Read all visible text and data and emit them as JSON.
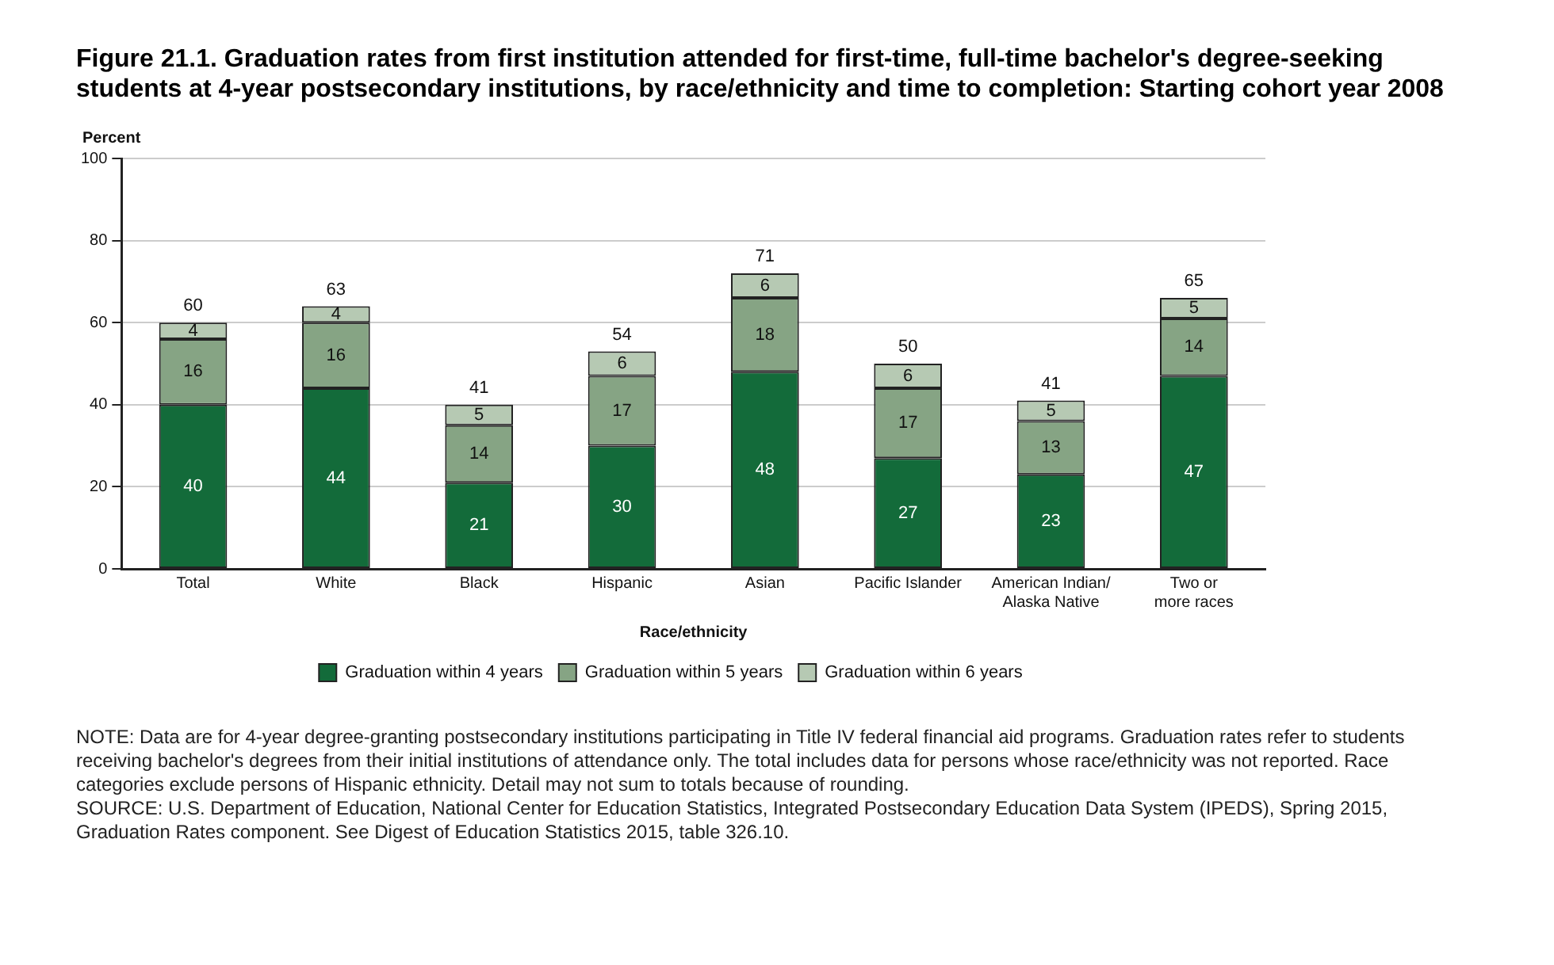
{
  "chart_data": {
    "type": "bar",
    "title": "Figure 21.1. Graduation rates from first institution attended for first-time, full-time bachelor's degree-seeking students at 4-year postsecondary institutions, by race/ethnicity and time to completion: Starting cohort year 2008",
    "ylabel": "Percent",
    "xlabel": "Race/ethnicity",
    "categories": [
      "Total",
      "White",
      "Black",
      "Hispanic",
      "Asian",
      "Pacific Islander",
      "American Indian/ Alaska Native",
      "Two or more races"
    ],
    "series": [
      {
        "name": "Graduation within 4 years",
        "color": "#136b3a",
        "values": [
          40,
          44,
          21,
          30,
          48,
          27,
          23,
          47
        ]
      },
      {
        "name": "Graduation within 5 years",
        "color": "#86a484",
        "values": [
          16,
          16,
          14,
          17,
          18,
          17,
          13,
          14
        ]
      },
      {
        "name": "Graduation within 6 years",
        "color": "#b6c9b3",
        "values": [
          4,
          4,
          5,
          6,
          6,
          6,
          5,
          5
        ]
      }
    ],
    "stacked": true,
    "data_labels": true,
    "totals": [
      "60",
      "63",
      "41",
      "54",
      "71",
      "50",
      "41",
      "65"
    ],
    "ylim": [
      0,
      100
    ],
    "yticks": [
      0,
      20,
      40,
      60,
      80,
      100
    ],
    "grid": "y",
    "legend": "bottom",
    "annotations": [
      "NOTE: Data are for 4-year degree-granting postsecondary institutions participating in Title IV federal financial aid programs. Graduation rates refer to students receiving bachelor's degrees from their initial institutions of attendance only. The total includes data for persons whose race/ethnicity was not reported. Race categories exclude persons of Hispanic ethnicity. Detail may not sum to totals because of rounding.",
      "SOURCE: U.S. Department of Education, National Center for Education Statistics, Integrated Postsecondary Education Data System (IPEDS), Spring 2015, Graduation Rates component. See Digest of Education Statistics 2015, table 326.10."
    ]
  }
}
